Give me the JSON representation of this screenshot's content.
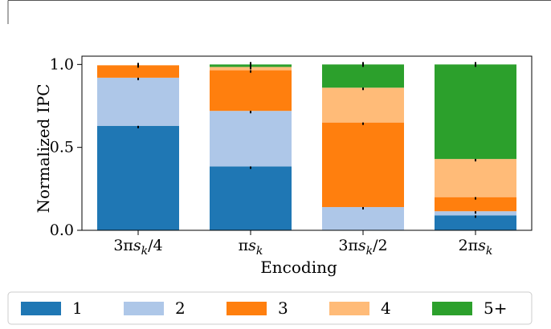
{
  "chart_data": {
    "type": "bar",
    "stacked": true,
    "xlabel": "Encoding",
    "ylabel": "Normalized IPC",
    "ylim": [
      0,
      1.05
    ],
    "yticks": [
      "0.0",
      "0.5",
      "1.0"
    ],
    "categories": [
      {
        "base": "3π",
        "var": "s",
        "sub": "k",
        "suffix": "/4"
      },
      {
        "base": "π",
        "var": "s",
        "sub": "k",
        "suffix": ""
      },
      {
        "base": "3π",
        "var": "s",
        "sub": "k",
        "suffix": "/2"
      },
      {
        "base": "2π",
        "var": "s",
        "sub": "k",
        "suffix": ""
      }
    ],
    "series": [
      {
        "name": "1",
        "color": "#1f77b4",
        "values": [
          0.63,
          0.385,
          0.0,
          0.09
        ]
      },
      {
        "name": "2",
        "color": "#aec7e8",
        "values": [
          0.29,
          0.335,
          0.14,
          0.025
        ]
      },
      {
        "name": "3",
        "color": "#ff7f0e",
        "values": [
          0.075,
          0.245,
          0.51,
          0.085
        ]
      },
      {
        "name": "4",
        "color": "#ffbb78",
        "values": [
          0.0,
          0.02,
          0.21,
          0.23
        ]
      },
      {
        "name": "5+",
        "color": "#2ca02c",
        "values": [
          0.0,
          0.015,
          0.14,
          0.57
        ]
      }
    ],
    "legend_position": "bottom",
    "grid": false
  }
}
